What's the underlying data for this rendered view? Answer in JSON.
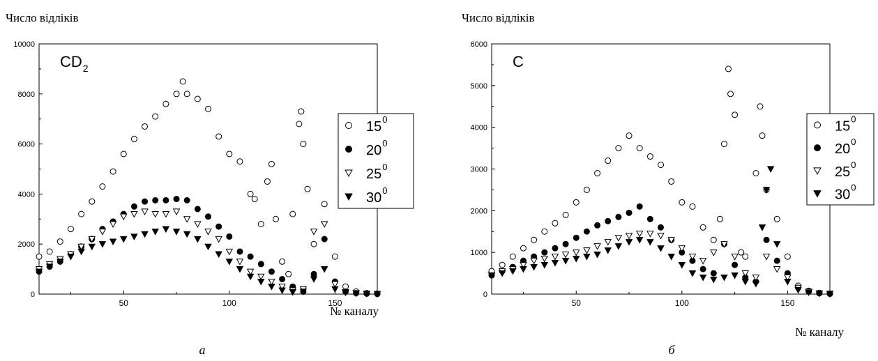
{
  "colors": {
    "open_marker": "#ffffff",
    "filled_marker": "#000000",
    "axis": "#000000"
  },
  "chart_data": [
    {
      "type": "scatter",
      "panel_caption": "а",
      "annotation": {
        "main": "CD",
        "sub": "2"
      },
      "ylabel": "Число відліків",
      "xlabel": "№ каналу",
      "xlim": [
        10,
        170
      ],
      "ylim": [
        0,
        10000
      ],
      "x_ticks": [
        50,
        100,
        150
      ],
      "y_ticks": [
        0,
        2000,
        4000,
        6000,
        8000,
        10000
      ],
      "grid": false,
      "legend_position": "right",
      "series": [
        {
          "name": "15",
          "sup": "0",
          "marker": "open-circle",
          "x": [
            10,
            15,
            20,
            25,
            30,
            35,
            40,
            45,
            50,
            55,
            60,
            65,
            70,
            75,
            78,
            80,
            85,
            90,
            95,
            100,
            105,
            110,
            112,
            115,
            118,
            120,
            122,
            125,
            128,
            130,
            133,
            134,
            135,
            137,
            140,
            145,
            150,
            155,
            160,
            165,
            170
          ],
          "y": [
            1500,
            1700,
            2100,
            2600,
            3200,
            3700,
            4300,
            4900,
            5600,
            6200,
            6700,
            7100,
            7600,
            8000,
            8500,
            8000,
            7800,
            7400,
            6300,
            5600,
            5300,
            4000,
            3800,
            2800,
            4500,
            5200,
            3000,
            1300,
            800,
            3200,
            6800,
            7300,
            6000,
            4200,
            2000,
            3600,
            1500,
            300,
            100,
            40,
            20
          ]
        },
        {
          "name": "20",
          "sup": "0",
          "marker": "filled-circle",
          "x": [
            10,
            15,
            20,
            25,
            30,
            35,
            40,
            45,
            50,
            55,
            60,
            65,
            70,
            75,
            80,
            85,
            90,
            95,
            100,
            105,
            110,
            115,
            120,
            125,
            130,
            135,
            140,
            145,
            150,
            155,
            160,
            165,
            170
          ],
          "y": [
            900,
            1100,
            1300,
            1600,
            1900,
            2200,
            2600,
            2900,
            3200,
            3500,
            3700,
            3750,
            3750,
            3800,
            3750,
            3400,
            3100,
            2700,
            2300,
            1700,
            1500,
            1200,
            900,
            600,
            300,
            100,
            800,
            2200,
            500,
            100,
            40,
            20,
            10
          ]
        },
        {
          "name": "25",
          "sup": "0",
          "marker": "open-triangle-down",
          "x": [
            10,
            15,
            20,
            25,
            30,
            35,
            40,
            45,
            50,
            55,
            60,
            65,
            70,
            75,
            80,
            85,
            90,
            95,
            100,
            105,
            110,
            115,
            120,
            125,
            130,
            135,
            140,
            145,
            150,
            155,
            160,
            165,
            170
          ],
          "y": [
            1000,
            1200,
            1400,
            1600,
            1900,
            2200,
            2500,
            2800,
            3100,
            3200,
            3300,
            3200,
            3200,
            3300,
            3000,
            2800,
            2500,
            2200,
            1700,
            1300,
            900,
            700,
            500,
            300,
            150,
            200,
            2500,
            2800,
            400,
            80,
            40,
            20,
            10
          ]
        },
        {
          "name": "30",
          "sup": "0",
          "marker": "filled-triangle-down",
          "x": [
            10,
            15,
            20,
            25,
            30,
            35,
            40,
            45,
            50,
            55,
            60,
            65,
            70,
            75,
            80,
            85,
            90,
            95,
            100,
            105,
            110,
            115,
            120,
            125,
            130,
            135,
            140,
            145,
            150,
            155,
            160,
            165,
            170
          ],
          "y": [
            900,
            1100,
            1300,
            1500,
            1700,
            1900,
            2000,
            2100,
            2200,
            2300,
            2400,
            2500,
            2600,
            2500,
            2400,
            2200,
            1900,
            1600,
            1300,
            1000,
            700,
            500,
            300,
            150,
            80,
            100,
            600,
            1000,
            200,
            60,
            30,
            15,
            10
          ]
        }
      ]
    },
    {
      "type": "scatter",
      "panel_caption": "б",
      "annotation": {
        "main": "C",
        "sub": ""
      },
      "ylabel": "Число відліків",
      "xlabel": "№ каналу",
      "xlim": [
        10,
        170
      ],
      "ylim": [
        0,
        6000
      ],
      "x_ticks": [
        50,
        100,
        150
      ],
      "y_ticks": [
        0,
        1000,
        2000,
        3000,
        4000,
        5000,
        6000
      ],
      "grid": false,
      "legend_position": "right",
      "series": [
        {
          "name": "15",
          "sup": "0",
          "marker": "open-circle",
          "x": [
            10,
            15,
            20,
            25,
            30,
            35,
            40,
            45,
            50,
            55,
            60,
            65,
            70,
            75,
            80,
            85,
            90,
            95,
            100,
            105,
            110,
            115,
            118,
            120,
            122,
            123,
            125,
            128,
            130,
            135,
            137,
            138,
            140,
            145,
            150,
            155,
            160,
            165,
            170
          ],
          "y": [
            550,
            700,
            900,
            1100,
            1300,
            1500,
            1700,
            1900,
            2200,
            2500,
            2900,
            3200,
            3500,
            3800,
            3500,
            3300,
            3100,
            2700,
            2200,
            2100,
            1600,
            1300,
            1800,
            3600,
            5400,
            4800,
            4300,
            1000,
            900,
            2900,
            4500,
            3800,
            2500,
            1800,
            900,
            200,
            80,
            30,
            10
          ]
        },
        {
          "name": "20",
          "sup": "0",
          "marker": "filled-circle",
          "x": [
            10,
            15,
            20,
            25,
            30,
            35,
            40,
            45,
            50,
            55,
            60,
            65,
            70,
            75,
            80,
            85,
            90,
            95,
            100,
            105,
            110,
            115,
            120,
            125,
            130,
            135,
            140,
            145,
            150,
            155,
            160,
            165,
            170
          ],
          "y": [
            450,
            550,
            650,
            800,
            900,
            1000,
            1100,
            1200,
            1350,
            1500,
            1650,
            1750,
            1850,
            1950,
            2100,
            1800,
            1600,
            1300,
            1000,
            800,
            600,
            500,
            1200,
            700,
            400,
            300,
            1300,
            800,
            500,
            150,
            60,
            20,
            10
          ]
        },
        {
          "name": "25",
          "sup": "0",
          "marker": "open-triangle-down",
          "x": [
            10,
            15,
            20,
            25,
            30,
            35,
            40,
            45,
            50,
            55,
            60,
            65,
            70,
            75,
            80,
            85,
            90,
            95,
            100,
            105,
            110,
            115,
            120,
            125,
            130,
            135,
            140,
            145,
            150,
            155,
            160,
            165,
            170
          ],
          "y": [
            450,
            550,
            600,
            700,
            800,
            850,
            900,
            950,
            1000,
            1050,
            1150,
            1250,
            1350,
            1400,
            1450,
            1450,
            1400,
            1300,
            1100,
            900,
            800,
            1000,
            1200,
            900,
            500,
            400,
            900,
            600,
            400,
            150,
            60,
            20,
            10
          ]
        },
        {
          "name": "30",
          "sup": "0",
          "marker": "filled-triangle-down",
          "x": [
            10,
            15,
            20,
            25,
            30,
            35,
            40,
            45,
            50,
            55,
            60,
            65,
            70,
            75,
            80,
            85,
            90,
            95,
            100,
            105,
            110,
            115,
            120,
            125,
            130,
            135,
            138,
            140,
            142,
            145,
            150,
            155,
            160,
            165,
            170
          ],
          "y": [
            450,
            500,
            550,
            600,
            650,
            700,
            750,
            800,
            850,
            900,
            950,
            1050,
            1150,
            1250,
            1300,
            1250,
            1100,
            900,
            700,
            500,
            400,
            350,
            400,
            450,
            300,
            250,
            1600,
            2500,
            3000,
            1200,
            300,
            100,
            40,
            15,
            5
          ]
        }
      ]
    }
  ]
}
